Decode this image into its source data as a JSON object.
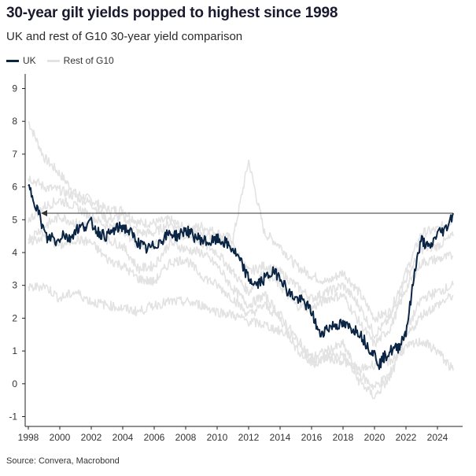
{
  "header": {
    "title": "30-year gilt yields popped to highest since 1998",
    "subtitle": "UK and rest of G10 30-year yield comparison"
  },
  "legend": [
    {
      "label": "UK",
      "color": "#0b2545"
    },
    {
      "label": "Rest of G10",
      "color": "#e3e3e3"
    }
  ],
  "source": "Source: Convera, Macrobond",
  "chart_data": {
    "type": "line",
    "title": "30-year gilt yields popped to highest since 1998",
    "subtitle": "UK and rest of G10 30-year yield comparison",
    "xlabel": "",
    "ylabel": "",
    "xlim": [
      1997.8,
      2025.3
    ],
    "ylim": [
      -1.3,
      9.3
    ],
    "x_ticks": [
      1998,
      2000,
      2002,
      2004,
      2006,
      2008,
      2010,
      2012,
      2014,
      2016,
      2018,
      2020,
      2022,
      2024
    ],
    "y_ticks": [
      -1,
      0,
      1,
      2,
      3,
      4,
      5,
      6,
      7,
      8,
      9
    ],
    "grid": false,
    "legend_position": "top-left",
    "annotation": {
      "type": "arrow",
      "from": [
        2025.0,
        5.2
      ],
      "to": [
        1998.8,
        5.2
      ],
      "color": "#333333"
    },
    "series": [
      {
        "name": "UK",
        "color": "#0b2545",
        "x": [
          1998.0,
          1998.3,
          1998.6,
          1998.9,
          1999.2,
          1999.5,
          1999.8,
          2000.2,
          2000.6,
          2001.0,
          2001.5,
          2002.0,
          2002.5,
          2003.0,
          2003.5,
          2004.0,
          2004.5,
          2005.0,
          2005.5,
          2006.0,
          2006.5,
          2007.0,
          2007.5,
          2008.0,
          2008.5,
          2009.0,
          2009.5,
          2010.0,
          2010.5,
          2011.0,
          2011.5,
          2012.0,
          2012.5,
          2013.0,
          2013.5,
          2014.0,
          2014.5,
          2015.0,
          2015.5,
          2016.0,
          2016.5,
          2017.0,
          2017.5,
          2018.0,
          2018.5,
          2019.0,
          2019.5,
          2020.0,
          2020.3,
          2020.6,
          2021.0,
          2021.5,
          2022.0,
          2022.3,
          2022.6,
          2022.8,
          2023.0,
          2023.5,
          2024.0,
          2024.5,
          2025.0
        ],
        "y": [
          6.0,
          5.7,
          5.3,
          4.8,
          4.4,
          4.5,
          4.3,
          4.6,
          4.4,
          4.7,
          4.8,
          4.9,
          4.6,
          4.5,
          4.7,
          4.8,
          4.6,
          4.3,
          4.1,
          4.2,
          4.4,
          4.6,
          4.5,
          4.7,
          4.5,
          4.4,
          4.3,
          4.4,
          4.3,
          4.1,
          3.7,
          3.2,
          3.0,
          3.2,
          3.4,
          3.3,
          2.8,
          2.6,
          2.5,
          2.2,
          1.5,
          1.7,
          1.8,
          1.8,
          1.7,
          1.6,
          1.2,
          0.9,
          0.6,
          0.8,
          1.0,
          1.1,
          1.6,
          2.5,
          3.6,
          4.0,
          4.4,
          4.1,
          4.6,
          4.7,
          5.2
        ]
      },
      {
        "name": "Rest of G10",
        "color": "#e3e3e3",
        "x": [
          1998.0,
          1999.0,
          2000.0,
          2001.0,
          2002.0,
          2003.0,
          2004.0,
          2005.0,
          2006.0,
          2007.0,
          2008.0,
          2009.0,
          2010.0,
          2011.0,
          2012.0,
          2013.0,
          2014.0,
          2015.0,
          2016.0,
          2017.0,
          2018.0,
          2019.0,
          2020.0,
          2021.0,
          2022.0,
          2023.0,
          2024.0,
          2025.0
        ],
        "y": [
          8.0,
          6.9,
          6.4,
          5.8,
          5.6,
          5.3,
          5.3,
          4.9,
          4.9,
          5.0,
          4.7,
          4.8,
          4.6,
          4.4,
          6.8,
          4.6,
          4.2,
          3.6,
          3.3,
          3.1,
          3.4,
          2.8,
          2.0,
          2.2,
          3.4,
          4.6,
          4.7,
          5.0
        ]
      },
      {
        "name": "Rest of G10",
        "color": "#e3e3e3",
        "x": [
          1998.0,
          1999.0,
          2000.0,
          2001.0,
          2002.0,
          2003.0,
          2004.0,
          2005.0,
          2006.0,
          2007.0,
          2008.0,
          2009.0,
          2010.0,
          2011.0,
          2012.0,
          2013.0,
          2014.0,
          2015.0,
          2016.0,
          2017.0,
          2018.0,
          2019.0,
          2020.0,
          2021.0,
          2022.0,
          2023.0,
          2024.0,
          2025.0
        ],
        "y": [
          6.3,
          6.0,
          5.9,
          5.7,
          5.5,
          5.0,
          5.1,
          4.6,
          4.6,
          4.9,
          4.6,
          4.6,
          4.5,
          4.2,
          3.4,
          3.6,
          3.4,
          3.0,
          2.6,
          2.8,
          3.0,
          2.4,
          1.5,
          2.0,
          3.2,
          4.1,
          4.2,
          4.5
        ]
      },
      {
        "name": "Rest of G10",
        "color": "#e3e3e3",
        "x": [
          1998.0,
          1999.0,
          2000.0,
          2001.0,
          2002.0,
          2003.0,
          2004.0,
          2005.0,
          2006.0,
          2007.0,
          2008.0,
          2009.0,
          2010.0,
          2011.0,
          2012.0,
          2013.0,
          2014.0,
          2015.0,
          2016.0,
          2017.0,
          2018.0,
          2019.0,
          2020.0,
          2021.0,
          2022.0,
          2023.0,
          2024.0,
          2025.0
        ],
        "y": [
          5.0,
          5.4,
          5.6,
          5.4,
          5.1,
          4.8,
          4.7,
          4.2,
          4.2,
          4.5,
          4.5,
          4.3,
          4.0,
          3.4,
          2.8,
          3.4,
          3.0,
          2.4,
          2.3,
          2.6,
          2.7,
          1.9,
          1.2,
          1.7,
          2.9,
          3.7,
          3.8,
          3.9
        ]
      },
      {
        "name": "Rest of G10",
        "color": "#e3e3e3",
        "x": [
          1998.0,
          1999.0,
          2000.0,
          2001.0,
          2002.0,
          2003.0,
          2004.0,
          2005.0,
          2006.0,
          2007.0,
          2008.0,
          2009.0,
          2010.0,
          2011.0,
          2012.0,
          2013.0,
          2014.0,
          2015.0,
          2016.0,
          2017.0,
          2018.0,
          2019.0,
          2020.0,
          2021.0,
          2022.0,
          2023.0,
          2024.0,
          2025.0
        ],
        "y": [
          4.4,
          4.8,
          5.1,
          4.9,
          4.8,
          4.4,
          4.2,
          3.5,
          3.6,
          4.3,
          4.1,
          4.0,
          3.6,
          2.9,
          2.4,
          2.7,
          2.1,
          1.4,
          0.8,
          1.0,
          1.2,
          0.3,
          -0.1,
          0.3,
          1.6,
          2.6,
          2.8,
          3.0
        ]
      },
      {
        "name": "Rest of G10",
        "color": "#e3e3e3",
        "x": [
          1998.0,
          1999.0,
          2000.0,
          2001.0,
          2002.0,
          2003.0,
          2004.0,
          2005.0,
          2006.0,
          2007.0,
          2008.0,
          2009.0,
          2010.0,
          2011.0,
          2012.0,
          2013.0,
          2014.0,
          2015.0,
          2016.0,
          2017.0,
          2018.0,
          2019.0,
          2020.0,
          2021.0,
          2022.0,
          2023.0,
          2024.0,
          2025.0
        ],
        "y": [
          4.3,
          4.5,
          4.2,
          4.4,
          4.3,
          3.8,
          3.6,
          3.2,
          3.1,
          3.7,
          3.8,
          3.3,
          3.0,
          2.6,
          2.1,
          2.4,
          2.0,
          1.1,
          0.6,
          0.8,
          0.9,
          0.1,
          -0.4,
          0.2,
          1.4,
          2.1,
          2.4,
          2.7
        ]
      },
      {
        "name": "Rest of G10",
        "color": "#e3e3e3",
        "x": [
          1998.0,
          1999.0,
          2000.0,
          2001.0,
          2002.0,
          2003.0,
          2004.0,
          2005.0,
          2006.0,
          2007.0,
          2008.0,
          2009.0,
          2010.0,
          2011.0,
          2012.0,
          2013.0,
          2014.0,
          2015.0,
          2016.0,
          2017.0,
          2018.0,
          2019.0,
          2020.0,
          2021.0,
          2022.0,
          2023.0,
          2024.0,
          2025.0
        ],
        "y": [
          2.9,
          3.0,
          2.6,
          2.8,
          2.5,
          2.4,
          2.3,
          2.2,
          2.4,
          2.5,
          2.5,
          2.4,
          2.2,
          2.1,
          1.9,
          1.8,
          1.6,
          1.4,
          0.7,
          0.8,
          0.7,
          0.4,
          0.6,
          0.7,
          1.1,
          1.3,
          1.0,
          0.4
        ]
      }
    ]
  }
}
